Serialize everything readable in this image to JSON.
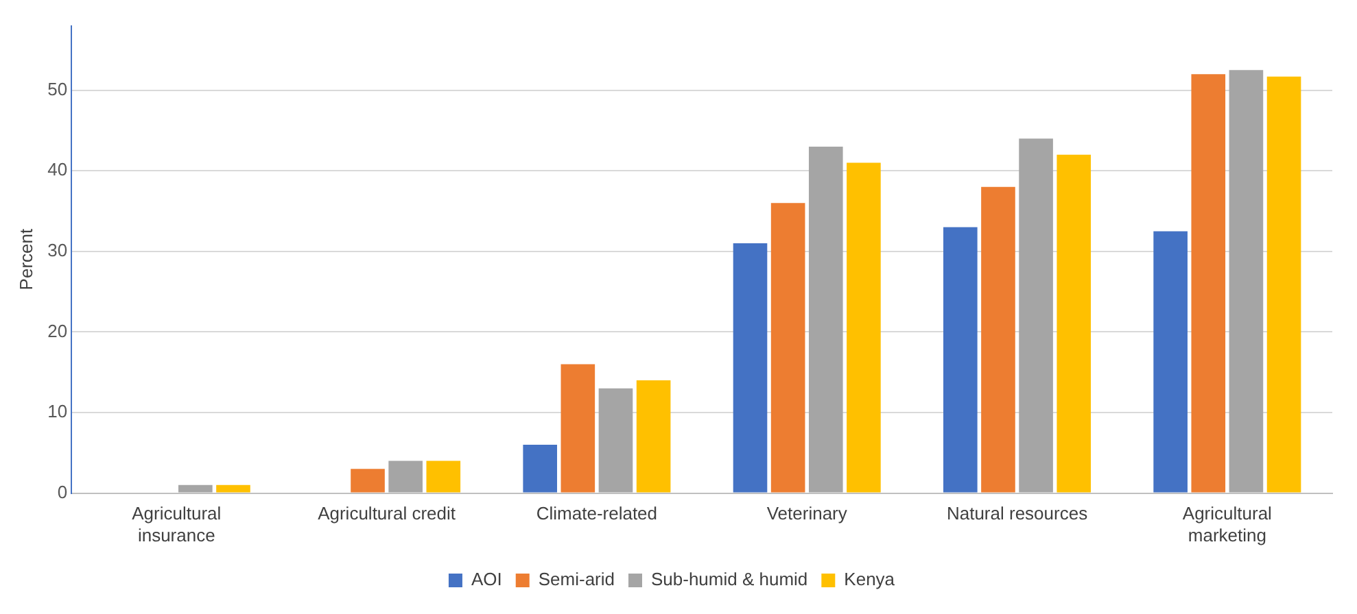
{
  "chart_data": {
    "type": "bar",
    "ylabel": "Percent",
    "categories": [
      "Agricultural insurance",
      "Agricultural credit",
      "Climate-related",
      "Veterinary",
      "Natural resources",
      "Agricultural marketing"
    ],
    "series": [
      {
        "name": "AOI",
        "color": "#4472c4",
        "values": [
          0,
          0,
          6,
          31,
          33,
          32.5
        ]
      },
      {
        "name": "Semi-arid",
        "color": "#ed7d31",
        "values": [
          0,
          3,
          16,
          36,
          38,
          52
        ]
      },
      {
        "name": "Sub-humid & humid",
        "color": "#a5a5a5",
        "values": [
          1,
          4,
          13,
          43,
          44,
          52.5
        ]
      },
      {
        "name": "Kenya",
        "color": "#ffc000",
        "values": [
          1,
          4,
          14,
          41,
          42,
          51.7
        ]
      }
    ],
    "ylim": [
      0,
      58
    ],
    "yticks": [
      0,
      10,
      20,
      30,
      40,
      50
    ],
    "grid": "y",
    "legend": "bottom"
  }
}
